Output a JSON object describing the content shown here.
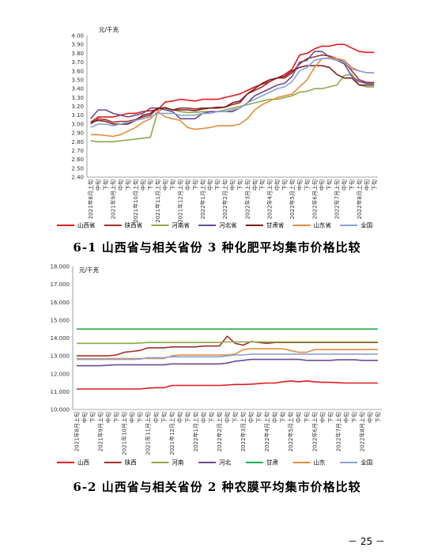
{
  "x_labels": [
    "2021年8月上旬",
    "中旬",
    "下旬",
    "2021年9月上旬",
    "中旬",
    "下旬",
    "2021年10月上旬",
    "中旬",
    "下旬",
    "2021年11月上旬",
    "中旬",
    "下旬",
    "2021年12月上旬",
    "中旬",
    "下旬",
    "2022年1月上旬",
    "中旬",
    "下旬",
    "2022年2月上旬",
    "中旬",
    "下旬",
    "2022年3月上旬",
    "中旬",
    "下旬",
    "2022年4月上旬",
    "中旬",
    "下旬",
    "2022年5月上旬",
    "中旬",
    "下旬",
    "2022年6月上旬",
    "中旬",
    "下旬",
    "2022年7月上旬",
    "中旬",
    "下旬",
    "2022年8月上旬",
    "中旬",
    "下旬"
  ],
  "chart_data": [
    {
      "type": "line",
      "unit": "元/千克",
      "caption": "6-1 山西省与相关省份 3 种化肥平均集市价格比较",
      "ylim": [
        2.4,
        4.0
      ],
      "yticks": [
        "2.40",
        "2.50",
        "2.60",
        "2.70",
        "2.80",
        "2.90",
        "3.00",
        "3.10",
        "3.20",
        "3.30",
        "3.40",
        "3.50",
        "3.60",
        "3.70",
        "3.80",
        "3.90",
        "4.00"
      ],
      "series": [
        {
          "name": "山西省",
          "color": "#e41a1c",
          "values": [
            3.02,
            3.08,
            3.08,
            3.08,
            3.1,
            3.12,
            3.12,
            3.14,
            3.15,
            3.16,
            3.25,
            3.26,
            3.28,
            3.27,
            3.26,
            3.28,
            3.28,
            3.28,
            3.3,
            3.32,
            3.34,
            3.38,
            3.42,
            3.45,
            3.48,
            3.52,
            3.56,
            3.62,
            3.78,
            3.8,
            3.85,
            3.88,
            3.88,
            3.9,
            3.9,
            3.86,
            3.82,
            3.81,
            3.81
          ]
        },
        {
          "name": "陕西省",
          "color": "#a0302c",
          "values": [
            3.0,
            3.06,
            3.05,
            3.02,
            3.03,
            3.03,
            3.05,
            3.08,
            3.1,
            3.18,
            3.18,
            3.16,
            3.18,
            3.18,
            3.17,
            3.18,
            3.18,
            3.19,
            3.19,
            3.22,
            3.24,
            3.34,
            3.38,
            3.42,
            3.48,
            3.52,
            3.52,
            3.58,
            3.68,
            3.74,
            3.76,
            3.78,
            3.77,
            3.74,
            3.7,
            3.6,
            3.5,
            3.47,
            3.47
          ]
        },
        {
          "name": "河南省",
          "color": "#8eaa47",
          "values": [
            2.81,
            2.8,
            2.8,
            2.8,
            2.81,
            2.82,
            2.83,
            2.84,
            2.85,
            3.14,
            3.19,
            3.16,
            3.14,
            3.13,
            3.13,
            3.14,
            3.14,
            3.14,
            3.16,
            3.18,
            3.2,
            3.22,
            3.24,
            3.26,
            3.28,
            3.28,
            3.3,
            3.32,
            3.36,
            3.37,
            3.4,
            3.4,
            3.42,
            3.44,
            3.55,
            3.56,
            3.44,
            3.42,
            3.42
          ]
        },
        {
          "name": "河北省",
          "color": "#6a4c93",
          "values": [
            3.06,
            3.16,
            3.16,
            3.12,
            3.1,
            3.08,
            3.1,
            3.12,
            3.18,
            3.18,
            3.16,
            3.14,
            3.06,
            3.06,
            3.06,
            3.12,
            3.14,
            3.14,
            3.14,
            3.14,
            3.18,
            3.24,
            3.32,
            3.36,
            3.4,
            3.44,
            3.46,
            3.54,
            3.7,
            3.72,
            3.82,
            3.82,
            3.76,
            3.72,
            3.68,
            3.54,
            3.48,
            3.46,
            3.46
          ]
        },
        {
          "name": "甘肃省",
          "color": "#7a1f1f",
          "values": [
            3.02,
            3.04,
            3.03,
            3.0,
            3.0,
            3.0,
            3.04,
            3.1,
            3.12,
            3.18,
            3.18,
            3.16,
            3.16,
            3.16,
            3.15,
            3.17,
            3.18,
            3.18,
            3.19,
            3.24,
            3.26,
            3.34,
            3.4,
            3.46,
            3.5,
            3.52,
            3.54,
            3.6,
            3.64,
            3.66,
            3.66,
            3.66,
            3.64,
            3.56,
            3.52,
            3.52,
            3.44,
            3.44,
            3.44
          ]
        },
        {
          "name": "山东省",
          "color": "#e88b3a",
          "values": [
            2.88,
            2.88,
            2.87,
            2.86,
            2.88,
            2.92,
            2.96,
            3.02,
            3.06,
            3.14,
            3.08,
            3.06,
            3.04,
            2.96,
            2.94,
            2.95,
            2.96,
            2.98,
            2.98,
            2.98,
            3.0,
            3.06,
            3.16,
            3.22,
            3.26,
            3.3,
            3.32,
            3.34,
            3.42,
            3.5,
            3.64,
            3.74,
            3.75,
            3.74,
            3.72,
            3.64,
            3.6,
            3.58,
            3.58
          ]
        },
        {
          "name": "全国",
          "color": "#8aa0d8",
          "values": [
            2.96,
            3.0,
            3.0,
            2.98,
            3.0,
            3.02,
            3.04,
            3.06,
            3.08,
            3.12,
            3.12,
            3.12,
            3.1,
            3.1,
            3.1,
            3.12,
            3.12,
            3.14,
            3.14,
            3.16,
            3.18,
            3.24,
            3.28,
            3.32,
            3.36,
            3.4,
            3.42,
            3.48,
            3.6,
            3.64,
            3.72,
            3.74,
            3.74,
            3.72,
            3.7,
            3.62,
            3.6,
            3.58,
            3.58
          ]
        }
      ]
    },
    {
      "type": "line",
      "unit": "元/千克",
      "caption": "6-2 山西省与相关省份 2 种农膜平均集市价格比较",
      "ylim": [
        10.0,
        18.0
      ],
      "yticks": [
        "10.000",
        "11.000",
        "12.000",
        "13.000",
        "14.000",
        "15.000",
        "16.000",
        "17.000",
        "18.000"
      ],
      "series": [
        {
          "name": "山西",
          "color": "#e41a1c",
          "values": [
            11.15,
            11.15,
            11.15,
            11.15,
            11.15,
            11.15,
            11.15,
            11.15,
            11.15,
            11.2,
            11.22,
            11.22,
            11.35,
            11.35,
            11.35,
            11.35,
            11.35,
            11.35,
            11.35,
            11.37,
            11.4,
            11.4,
            11.42,
            11.45,
            11.48,
            11.48,
            11.55,
            11.6,
            11.55,
            11.6,
            11.55,
            11.52,
            11.52,
            11.5,
            11.48,
            11.48,
            11.48,
            11.48,
            11.48
          ]
        },
        {
          "name": "陕西",
          "color": "#a0302c",
          "values": [
            13.0,
            13.0,
            13.0,
            13.0,
            13.0,
            13.05,
            13.2,
            13.25,
            13.3,
            13.45,
            13.45,
            13.45,
            13.5,
            13.5,
            13.5,
            13.5,
            13.55,
            13.55,
            13.55,
            14.1,
            13.7,
            13.6,
            13.8,
            13.75,
            13.7,
            13.75,
            13.75,
            13.75,
            13.75,
            13.75,
            13.75,
            13.75,
            13.75,
            13.75,
            13.75,
            13.75,
            13.75,
            13.75,
            13.75
          ]
        },
        {
          "name": "河南",
          "color": "#8eaa47",
          "values": [
            13.7,
            13.7,
            13.7,
            13.7,
            13.7,
            13.7,
            13.7,
            13.7,
            13.72,
            13.75,
            13.75,
            13.75,
            13.75,
            13.75,
            13.75,
            13.75,
            13.75,
            13.75,
            13.75,
            13.78,
            13.78,
            13.78,
            13.78,
            13.78,
            13.78,
            13.78,
            13.78,
            13.78,
            13.78,
            13.78,
            13.78,
            13.78,
            13.78,
            13.78,
            13.78,
            13.78,
            13.78,
            13.78,
            13.78
          ]
        },
        {
          "name": "河北",
          "color": "#6a4c93",
          "values": [
            12.45,
            12.45,
            12.45,
            12.45,
            12.48,
            12.5,
            12.5,
            12.5,
            12.5,
            12.5,
            12.5,
            12.5,
            12.55,
            12.55,
            12.55,
            12.55,
            12.55,
            12.55,
            12.55,
            12.6,
            12.7,
            12.75,
            12.8,
            12.8,
            12.8,
            12.8,
            12.8,
            12.8,
            12.8,
            12.75,
            12.75,
            12.75,
            12.75,
            12.78,
            12.78,
            12.78,
            12.75,
            12.75,
            12.75
          ]
        },
        {
          "name": "甘肃",
          "color": "#22b14c",
          "values": [
            14.5,
            14.5,
            14.5,
            14.5,
            14.5,
            14.5,
            14.5,
            14.5,
            14.5,
            14.5,
            14.5,
            14.5,
            14.5,
            14.5,
            14.5,
            14.5,
            14.5,
            14.5,
            14.5,
            14.5,
            14.5,
            14.5,
            14.5,
            14.5,
            14.5,
            14.5,
            14.5,
            14.5,
            14.5,
            14.5,
            14.5,
            14.5,
            14.5,
            14.5,
            14.5,
            14.5,
            14.5,
            14.5,
            14.5
          ]
        },
        {
          "name": "山东",
          "color": "#e88b3a",
          "values": [
            12.85,
            12.85,
            12.85,
            12.85,
            12.85,
            12.85,
            12.85,
            12.85,
            12.85,
            12.85,
            12.85,
            12.85,
            13.0,
            13.05,
            13.05,
            13.05,
            13.05,
            13.05,
            13.05,
            13.05,
            13.1,
            13.35,
            13.4,
            13.4,
            13.4,
            13.4,
            13.4,
            13.3,
            13.2,
            13.2,
            13.35,
            13.35,
            13.35,
            13.35,
            13.35,
            13.35,
            13.35,
            13.35,
            13.35
          ]
        },
        {
          "name": "全国",
          "color": "#8aa0d8",
          "values": [
            12.8,
            12.8,
            12.8,
            12.8,
            12.8,
            12.8,
            12.8,
            12.8,
            12.82,
            12.9,
            12.9,
            12.9,
            12.95,
            12.95,
            12.95,
            12.95,
            12.95,
            12.95,
            12.95,
            13.0,
            13.05,
            13.05,
            13.1,
            13.1,
            13.1,
            13.1,
            13.1,
            13.1,
            13.1,
            13.1,
            13.1,
            13.1,
            13.1,
            13.1,
            13.1,
            13.1,
            13.1,
            13.1,
            13.1
          ]
        }
      ]
    }
  ],
  "page_number": "－ 25 －"
}
